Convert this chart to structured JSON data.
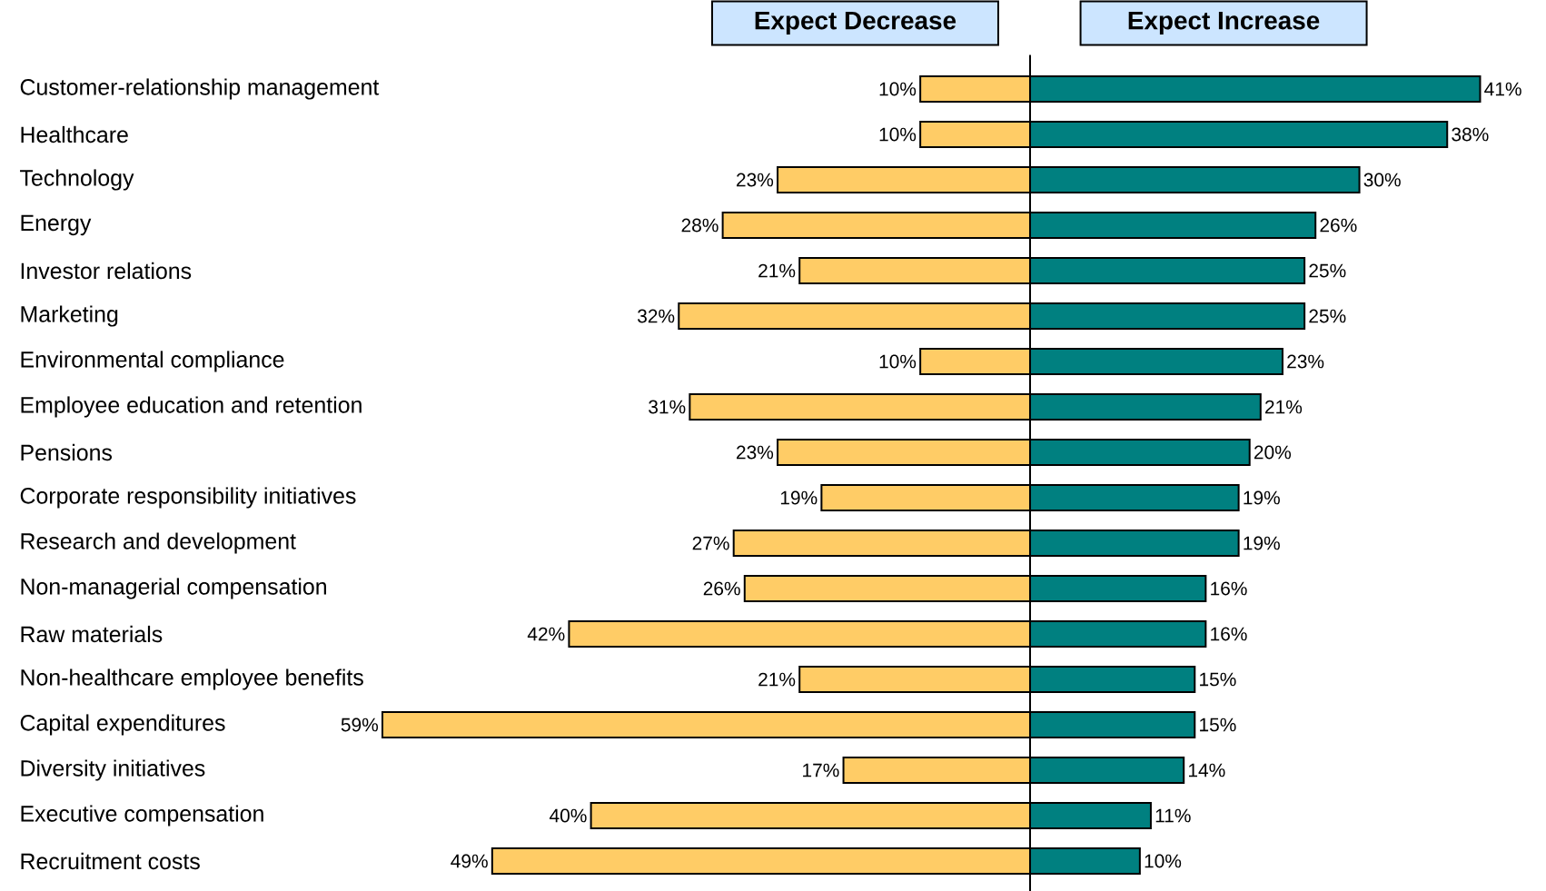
{
  "chart_data": [
    {
      "type": "bar",
      "orientation": "horizontal",
      "title": "Expect Decrease",
      "color": "#ffcc66",
      "xlim": [
        59,
        0
      ],
      "tick_labels": "y",
      "categories": [
        "Customer-relationship management",
        "Healthcare",
        "Technology",
        "Energy",
        "Investor relations",
        "Marketing",
        "Environmental compliance",
        "Employee education and retention",
        "Pensions",
        "Corporate responsibility initiatives",
        "Research and development",
        "Non-managerial compensation",
        "Raw materials",
        "Non-healthcare employee benefits",
        "Capital expenditures",
        "Diversity initiatives",
        "Executive compensation",
        "Recruitment costs"
      ],
      "values": [
        10,
        10,
        23,
        28,
        21,
        32,
        10,
        31,
        23,
        19,
        27,
        26,
        42,
        21,
        59,
        17,
        40,
        49
      ],
      "value_labels": [
        "10%",
        "10%",
        "23%",
        "28%",
        "21%",
        "32%",
        "10%",
        "31%",
        "23%",
        "19%",
        "27%",
        "26%",
        "42%",
        "21%",
        "59%",
        "17%",
        "40%",
        "49%"
      ]
    },
    {
      "type": "bar",
      "orientation": "horizontal",
      "title": "Expect Increase",
      "color": "#008080",
      "xlim": [
        0,
        41
      ],
      "categories": [
        null,
        null,
        null,
        null,
        null,
        null,
        null,
        null,
        null,
        null,
        null,
        null,
        null,
        null,
        null,
        null,
        null,
        null
      ],
      "values": [
        41,
        38,
        30,
        26,
        25,
        25,
        23,
        21,
        20,
        19,
        19,
        16,
        16,
        15,
        15,
        14,
        11,
        10
      ],
      "value_labels": [
        "41%",
        "38%",
        "30%",
        "26%",
        "25%",
        "25%",
        "23%",
        "21%",
        "20%",
        "19%",
        "19%",
        "16%",
        "16%",
        "15%",
        "15%",
        "14%",
        "11%",
        "10%"
      ]
    }
  ]
}
